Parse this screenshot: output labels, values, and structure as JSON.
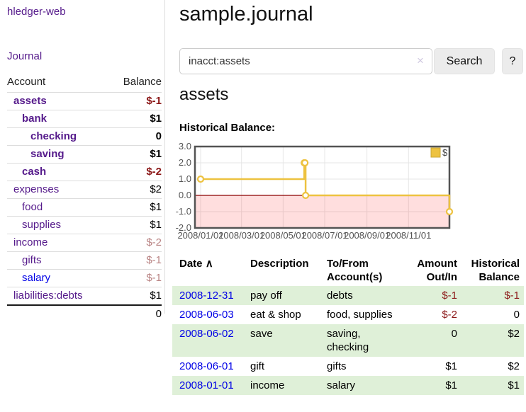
{
  "app": {
    "title": "hledger-web",
    "nav_journal": "Journal"
  },
  "sidebar": {
    "headers": {
      "account": "Account",
      "balance": "Balance"
    },
    "accounts": [
      {
        "name": "assets",
        "balance": "$-1"
      },
      {
        "name": "bank",
        "balance": "$1"
      },
      {
        "name": "checking",
        "balance": "0"
      },
      {
        "name": "saving",
        "balance": "$1"
      },
      {
        "name": "cash",
        "balance": "$-2"
      },
      {
        "name": "expenses",
        "balance": "$2"
      },
      {
        "name": "food",
        "balance": "$1"
      },
      {
        "name": "supplies",
        "balance": "$1"
      },
      {
        "name": "income",
        "balance": "$-2"
      },
      {
        "name": "gifts",
        "balance": "$-1"
      },
      {
        "name": "salary",
        "balance": "$-1"
      },
      {
        "name": "liabilities:debts",
        "balance": "$1"
      }
    ],
    "total": "0"
  },
  "header": {
    "title": "sample.journal"
  },
  "search": {
    "value": "inacct:assets",
    "clear_icon": "×",
    "button_label": "Search",
    "help_label": "?"
  },
  "account_page": {
    "title": "assets",
    "chart_label": "Historical Balance:"
  },
  "chart_data": {
    "type": "line",
    "step": true,
    "title": "Historical Balance",
    "series": [
      {
        "name": "$",
        "points": [
          {
            "date": "2008-01-01",
            "day": 0,
            "value": 1
          },
          {
            "date": "2008-06-01",
            "day": 152,
            "value": 2
          },
          {
            "date": "2008-06-02",
            "day": 153,
            "value": 2
          },
          {
            "date": "2008-06-03",
            "day": 154,
            "value": 0
          },
          {
            "date": "2008-12-31",
            "day": 365,
            "value": -1
          }
        ]
      }
    ],
    "yticks": [
      3.0,
      2.0,
      1.0,
      0.0,
      -1.0,
      -2.0
    ],
    "xticks": [
      {
        "label": "2008/01/01",
        "day": 0
      },
      {
        "label": "2008/03/01",
        "day": 60
      },
      {
        "label": "2008/05/01",
        "day": 121
      },
      {
        "label": "2008/07/01",
        "day": 182
      },
      {
        "label": "2008/09/01",
        "day": 244
      },
      {
        "label": "2008/11/01",
        "day": 305
      }
    ],
    "ylim": [
      -2,
      3
    ],
    "xlim_days": [
      0,
      365
    ],
    "grid": true,
    "legend_position": "top-right",
    "colors": {
      "series": "#edc240",
      "marker_fill": "#ffffff",
      "negative_fill": "rgba(255,0,0,0.13)",
      "zero_line": "#8b0000",
      "grid": "#e6e6e6",
      "border": "#545454",
      "tick_text": "#545454",
      "legend_box_border": "#c9a633"
    }
  },
  "register": {
    "headers": {
      "date": "Date",
      "sort_icon": "∧",
      "description": "Description",
      "accounts": "To/From Account(s)",
      "amount": "Amount Out/In",
      "balance": "Historical Balance"
    },
    "rows": [
      {
        "date": "2008-12-31",
        "description": "pay off",
        "accounts": "debts",
        "amount": "$-1",
        "balance": "$-1"
      },
      {
        "date": "2008-06-03",
        "description": "eat & shop",
        "accounts": "food, supplies",
        "amount": "$-2",
        "balance": "0"
      },
      {
        "date": "2008-06-02",
        "description": "save",
        "accounts": "saving, checking",
        "amount": "0",
        "balance": "$2"
      },
      {
        "date": "2008-06-01",
        "description": "gift",
        "accounts": "gifts",
        "amount": "$1",
        "balance": "$2"
      },
      {
        "date": "2008-01-01",
        "description": "income",
        "accounts": "salary",
        "amount": "$1",
        "balance": "$1"
      }
    ]
  }
}
